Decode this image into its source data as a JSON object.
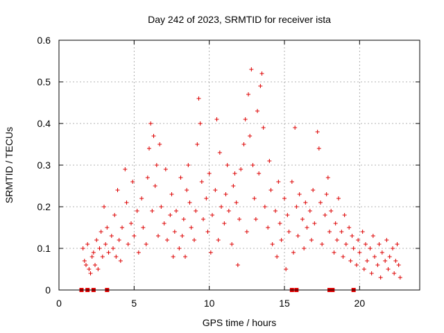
{
  "chart_data": {
    "type": "scatter",
    "title": "Day 242 of 2023, SRMTID for receiver ista",
    "xlabel": "GPS time / hours",
    "ylabel": "SRMTID / TECUs",
    "xlim": [
      0,
      24
    ],
    "ylim": [
      0,
      0.6
    ],
    "x_ticks": [
      0,
      5,
      10,
      15,
      20
    ],
    "y_ticks": [
      0,
      0.1,
      0.2,
      0.3,
      0.4,
      0.5,
      0.6
    ],
    "x_tick_labels": [
      "0",
      "5",
      "10",
      "15",
      "20"
    ],
    "y_tick_labels": [
      "0",
      "0.1",
      "0.2",
      "0.3",
      "0.4",
      "0.5",
      "0.6"
    ],
    "grid": true,
    "marker_color": "#dd0000",
    "series": [
      {
        "name": "SRMTID",
        "marker": "plus",
        "points": [
          [
            1.6,
            0.1
          ],
          [
            1.7,
            0.07
          ],
          [
            1.8,
            0.06
          ],
          [
            1.9,
            0.11
          ],
          [
            2.0,
            0.05
          ],
          [
            2.1,
            0.04
          ],
          [
            2.2,
            0.08
          ],
          [
            2.3,
            0.09
          ],
          [
            2.4,
            0.06
          ],
          [
            2.5,
            0.12
          ],
          [
            2.6,
            0.05
          ],
          [
            2.7,
            0.1
          ],
          [
            2.8,
            0.14
          ],
          [
            2.9,
            0.08
          ],
          [
            3.0,
            0.2
          ],
          [
            3.1,
            0.11
          ],
          [
            3.2,
            0.15
          ],
          [
            3.3,
            0.09
          ],
          [
            3.5,
            0.13
          ],
          [
            3.6,
            0.1
          ],
          [
            3.7,
            0.18
          ],
          [
            3.8,
            0.08
          ],
          [
            3.9,
            0.24
          ],
          [
            4.0,
            0.12
          ],
          [
            4.1,
            0.07
          ],
          [
            4.2,
            0.15
          ],
          [
            4.4,
            0.29
          ],
          [
            4.5,
            0.21
          ],
          [
            4.6,
            0.11
          ],
          [
            4.8,
            0.16
          ],
          [
            4.9,
            0.26
          ],
          [
            5.0,
            0.13
          ],
          [
            5.2,
            0.19
          ],
          [
            5.3,
            0.09
          ],
          [
            5.5,
            0.22
          ],
          [
            5.6,
            0.15
          ],
          [
            5.8,
            0.11
          ],
          [
            5.9,
            0.27
          ],
          [
            6.0,
            0.34
          ],
          [
            6.1,
            0.4
          ],
          [
            6.2,
            0.19
          ],
          [
            6.3,
            0.37
          ],
          [
            6.4,
            0.25
          ],
          [
            6.5,
            0.3
          ],
          [
            6.6,
            0.13
          ],
          [
            6.7,
            0.35
          ],
          [
            6.8,
            0.2
          ],
          [
            7.0,
            0.16
          ],
          [
            7.1,
            0.29
          ],
          [
            7.2,
            0.12
          ],
          [
            7.4,
            0.18
          ],
          [
            7.5,
            0.23
          ],
          [
            7.6,
            0.08
          ],
          [
            7.7,
            0.14
          ],
          [
            7.8,
            0.19
          ],
          [
            8.0,
            0.1
          ],
          [
            8.1,
            0.27
          ],
          [
            8.2,
            0.13
          ],
          [
            8.3,
            0.17
          ],
          [
            8.4,
            0.08
          ],
          [
            8.5,
            0.24
          ],
          [
            8.6,
            0.3
          ],
          [
            8.7,
            0.21
          ],
          [
            8.8,
            0.15
          ],
          [
            9.0,
            0.12
          ],
          [
            9.1,
            0.19
          ],
          [
            9.2,
            0.35
          ],
          [
            9.3,
            0.46
          ],
          [
            9.4,
            0.4
          ],
          [
            9.5,
            0.26
          ],
          [
            9.6,
            0.17
          ],
          [
            9.8,
            0.22
          ],
          [
            9.9,
            0.14
          ],
          [
            10.0,
            0.28
          ],
          [
            10.1,
            0.09
          ],
          [
            10.2,
            0.18
          ],
          [
            10.4,
            0.24
          ],
          [
            10.5,
            0.41
          ],
          [
            10.6,
            0.12
          ],
          [
            10.7,
            0.33
          ],
          [
            10.8,
            0.2
          ],
          [
            11.0,
            0.16
          ],
          [
            11.1,
            0.23
          ],
          [
            11.2,
            0.3
          ],
          [
            11.3,
            0.19
          ],
          [
            11.5,
            0.11
          ],
          [
            11.6,
            0.25
          ],
          [
            11.7,
            0.28
          ],
          [
            11.8,
            0.21
          ],
          [
            11.9,
            0.06
          ],
          [
            12.0,
            0.17
          ],
          [
            12.1,
            0.29
          ],
          [
            12.3,
            0.35
          ],
          [
            12.4,
            0.41
          ],
          [
            12.5,
            0.14
          ],
          [
            12.6,
            0.47
          ],
          [
            12.7,
            0.37
          ],
          [
            12.8,
            0.53
          ],
          [
            12.9,
            0.3
          ],
          [
            13.0,
            0.22
          ],
          [
            13.1,
            0.17
          ],
          [
            13.2,
            0.43
          ],
          [
            13.3,
            0.28
          ],
          [
            13.4,
            0.49
          ],
          [
            13.5,
            0.52
          ],
          [
            13.6,
            0.39
          ],
          [
            13.7,
            0.2
          ],
          [
            13.9,
            0.15
          ],
          [
            14.0,
            0.31
          ],
          [
            14.1,
            0.24
          ],
          [
            14.2,
            0.11
          ],
          [
            14.4,
            0.19
          ],
          [
            14.5,
            0.08
          ],
          [
            14.6,
            0.26
          ],
          [
            14.7,
            0.16
          ],
          [
            14.8,
            0.12
          ],
          [
            15.0,
            0.22
          ],
          [
            15.1,
            0.05
          ],
          [
            15.2,
            0.18
          ],
          [
            15.3,
            0.14
          ],
          [
            15.5,
            0.26
          ],
          [
            15.6,
            0.09
          ],
          [
            15.7,
            0.39
          ],
          [
            15.8,
            0.2
          ],
          [
            15.9,
            0.13
          ],
          [
            16.0,
            0.23
          ],
          [
            16.2,
            0.17
          ],
          [
            16.3,
            0.1
          ],
          [
            16.4,
            0.21
          ],
          [
            16.5,
            0.15
          ],
          [
            16.7,
            0.19
          ],
          [
            16.8,
            0.12
          ],
          [
            16.9,
            0.24
          ],
          [
            17.0,
            0.16
          ],
          [
            17.2,
            0.38
          ],
          [
            17.3,
            0.34
          ],
          [
            17.4,
            0.21
          ],
          [
            17.5,
            0.11
          ],
          [
            17.7,
            0.18
          ],
          [
            17.8,
            0.23
          ],
          [
            17.9,
            0.27
          ],
          [
            18.0,
            0.14
          ],
          [
            18.1,
            0.19
          ],
          [
            18.3,
            0.09
          ],
          [
            18.4,
            0.16
          ],
          [
            18.5,
            0.12
          ],
          [
            18.6,
            0.22
          ],
          [
            18.8,
            0.14
          ],
          [
            18.9,
            0.08
          ],
          [
            19.0,
            0.18
          ],
          [
            19.1,
            0.11
          ],
          [
            19.3,
            0.15
          ],
          [
            19.4,
            0.07
          ],
          [
            19.5,
            0.13
          ],
          [
            19.6,
            0.1
          ],
          [
            19.8,
            0.06
          ],
          [
            19.9,
            0.12
          ],
          [
            20.0,
            0.09
          ],
          [
            20.2,
            0.14
          ],
          [
            20.3,
            0.05
          ],
          [
            20.4,
            0.11
          ],
          [
            20.5,
            0.07
          ],
          [
            20.7,
            0.1
          ],
          [
            20.8,
            0.04
          ],
          [
            20.9,
            0.13
          ],
          [
            21.0,
            0.08
          ],
          [
            21.2,
            0.06
          ],
          [
            21.3,
            0.11
          ],
          [
            21.4,
            0.03
          ],
          [
            21.5,
            0.09
          ],
          [
            21.7,
            0.07
          ],
          [
            21.8,
            0.12
          ],
          [
            21.9,
            0.05
          ],
          [
            22.0,
            0.08
          ],
          [
            22.2,
            0.1
          ],
          [
            22.3,
            0.04
          ],
          [
            22.4,
            0.07
          ],
          [
            22.5,
            0.11
          ],
          [
            22.6,
            0.06
          ],
          [
            22.7,
            0.03
          ]
        ]
      },
      {
        "name": "zero-level markers",
        "marker": "square",
        "x": [
          1.5,
          1.9,
          2.3,
          3.2,
          15.5,
          15.8,
          18.0,
          18.2,
          19.6
        ],
        "y": [
          0,
          0,
          0,
          0,
          0,
          0,
          0,
          0,
          0
        ]
      }
    ]
  }
}
